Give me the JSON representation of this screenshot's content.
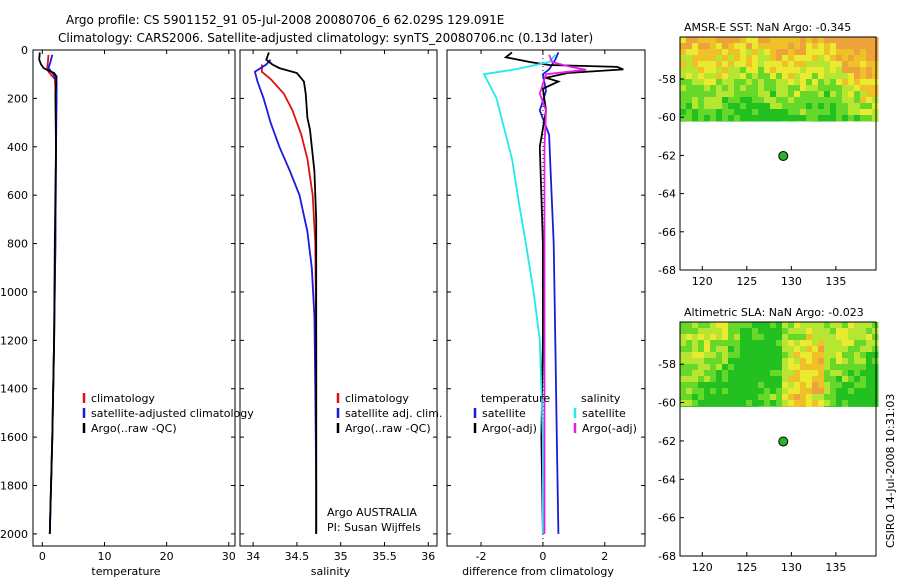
{
  "header": {
    "line1": "Argo profile: CS 5901152_91 05-Jul-2008 20080706_6 62.029S 129.091E",
    "line2": "Climatology: CARS2006. Satellite-adjusted climatology: synTS_20080706.nc (0.13d later)"
  },
  "side_stamp": "CSIRO 14-Jul-2008 10:31:03",
  "colors": {
    "red": "#e01010",
    "blue": "#1a1adc",
    "black": "#000000",
    "cyan": "#22e8f0",
    "magenta": "#e81ce8"
  },
  "chart_data": [
    {
      "type": "line",
      "id": "temperature",
      "xlabel": "temperature",
      "ylabel": "",
      "xlim": [
        -1.5,
        31
      ],
      "ylim": [
        2050,
        0
      ],
      "xticks": [
        0,
        10,
        20,
        30
      ],
      "yticks": [
        0,
        200,
        400,
        600,
        800,
        1000,
        1200,
        1400,
        1600,
        1800,
        2000
      ],
      "legend": {
        "position": "lower-right",
        "entries": [
          "climatology",
          "satellite-adjusted climatology",
          "Argo(..raw -QC)"
        ]
      },
      "series": [
        {
          "name": "climatology",
          "color": "red",
          "points": [
            [
              1.0,
              20
            ],
            [
              0.9,
              50
            ],
            [
              0.8,
              70
            ],
            [
              1.0,
              90
            ],
            [
              2.0,
              120
            ],
            [
              2.2,
              200
            ],
            [
              2.2,
              400
            ],
            [
              2.1,
              800
            ],
            [
              1.9,
              1200
            ],
            [
              1.6,
              1600
            ],
            [
              1.3,
              1900
            ],
            [
              1.2,
              2000
            ]
          ]
        },
        {
          "name": "satellite-adjusted climatology",
          "color": "blue",
          "points": [
            [
              1.6,
              20
            ],
            [
              1.3,
              50
            ],
            [
              1.0,
              75
            ],
            [
              1.8,
              100
            ],
            [
              2.3,
              130
            ],
            [
              2.3,
              200
            ],
            [
              2.2,
              400
            ],
            [
              2.1,
              800
            ],
            [
              1.9,
              1200
            ],
            [
              1.6,
              1600
            ],
            [
              1.3,
              1900
            ],
            [
              1.2,
              2000
            ]
          ]
        },
        {
          "name": "Argo(..raw -QC)",
          "color": "black",
          "points": [
            [
              -0.4,
              10
            ],
            [
              -0.5,
              40
            ],
            [
              -0.2,
              60
            ],
            [
              0.2,
              75
            ],
            [
              1.0,
              85
            ],
            [
              1.9,
              95
            ],
            [
              2.3,
              110
            ],
            [
              2.1,
              180
            ],
            [
              2.2,
              400
            ],
            [
              2.0,
              800
            ],
            [
              1.9,
              1200
            ],
            [
              1.6,
              1600
            ],
            [
              1.3,
              1900
            ],
            [
              1.2,
              2000
            ]
          ]
        }
      ]
    },
    {
      "type": "line",
      "id": "salinity",
      "xlabel": "salinity",
      "ylabel": "",
      "xlim": [
        33.85,
        36.1
      ],
      "ylim": [
        2050,
        0
      ],
      "xticks": [
        34,
        34.5,
        35,
        35.5,
        36
      ],
      "legend": {
        "position": "lower-right",
        "entries": [
          "climatology",
          "satellite adj. clim.",
          "Argo(..raw -QC)"
        ]
      },
      "annotation": [
        "Argo AUSTRALIA",
        "PI: Susan Wijffels"
      ],
      "series": [
        {
          "name": "climatology",
          "color": "red",
          "points": [
            [
              34.1,
              60
            ],
            [
              34.1,
              90
            ],
            [
              34.2,
              120
            ],
            [
              34.35,
              180
            ],
            [
              34.45,
              250
            ],
            [
              34.55,
              350
            ],
            [
              34.62,
              450
            ],
            [
              34.68,
              600
            ],
            [
              34.71,
              800
            ],
            [
              34.72,
              1200
            ],
            [
              34.72,
              1600
            ],
            [
              34.72,
              2000
            ]
          ]
        },
        {
          "name": "satellite adj. clim.",
          "color": "blue",
          "points": [
            [
              34.2,
              40
            ],
            [
              34.15,
              60
            ],
            [
              34.02,
              90
            ],
            [
              34.05,
              130
            ],
            [
              34.12,
              200
            ],
            [
              34.2,
              300
            ],
            [
              34.3,
              400
            ],
            [
              34.42,
              500
            ],
            [
              34.53,
              600
            ],
            [
              34.62,
              750
            ],
            [
              34.67,
              900
            ],
            [
              34.7,
              1100
            ],
            [
              34.71,
              1400
            ],
            [
              34.72,
              1800
            ],
            [
              34.72,
              2000
            ]
          ]
        },
        {
          "name": "Argo(..raw -QC)",
          "color": "black",
          "points": [
            [
              34.18,
              10
            ],
            [
              34.15,
              40
            ],
            [
              34.22,
              60
            ],
            [
              34.3,
              75
            ],
            [
              34.35,
              80
            ],
            [
              34.5,
              95
            ],
            [
              34.58,
              130
            ],
            [
              34.6,
              180
            ],
            [
              34.62,
              280
            ],
            [
              34.65,
              330
            ],
            [
              34.67,
              400
            ],
            [
              34.7,
              500
            ],
            [
              34.72,
              700
            ],
            [
              34.72,
              1000
            ],
            [
              34.72,
              1500
            ],
            [
              34.72,
              2000
            ]
          ]
        }
      ]
    },
    {
      "type": "line",
      "id": "difference",
      "xlabel": "difference from climatology",
      "ylabel": "",
      "xlim": [
        -3.1,
        3.3
      ],
      "ylim": [
        2050,
        0
      ],
      "xticks": [
        -2,
        0,
        2
      ],
      "legend": {
        "position": "lower-right",
        "entries": [
          "temperature",
          "satellite",
          "Argo(-adj)",
          "salinity",
          "satellite",
          "Argo(-adj)"
        ]
      },
      "series": [
        {
          "name": "temperature satellite",
          "color": "blue",
          "points": [
            [
              0.5,
              10
            ],
            [
              0.4,
              40
            ],
            [
              0.2,
              80
            ],
            [
              0,
              100
            ],
            [
              0.1,
              170
            ],
            [
              -0.1,
              250
            ],
            [
              0.2,
              350
            ],
            [
              0.25,
              500
            ],
            [
              0.35,
              800
            ],
            [
              0.4,
              1200
            ],
            [
              0.45,
              1600
            ],
            [
              0.5,
              2000
            ]
          ]
        },
        {
          "name": "temperature Argo(-adj)",
          "color": "black",
          "points": [
            [
              -1.0,
              10
            ],
            [
              -1.2,
              30
            ],
            [
              -0.4,
              50
            ],
            [
              0.2,
              62
            ],
            [
              2.4,
              70
            ],
            [
              2.6,
              80
            ],
            [
              0.8,
              95
            ],
            [
              0.1,
              115
            ],
            [
              0.5,
              130
            ],
            [
              0,
              160
            ],
            [
              0.1,
              250
            ],
            [
              -0.1,
              400
            ],
            [
              0,
              800
            ],
            [
              0,
              1200
            ],
            [
              -0.05,
              1600
            ],
            [
              0,
              2000
            ]
          ]
        },
        {
          "name": "salinity satellite",
          "color": "cyan",
          "points": [
            [
              0.4,
              20
            ],
            [
              0.2,
              50
            ],
            [
              -0.9,
              80
            ],
            [
              -1.9,
              100
            ],
            [
              -1.5,
              200
            ],
            [
              -1.2,
              350
            ],
            [
              -1.0,
              450
            ],
            [
              -0.75,
              650
            ],
            [
              -0.55,
              800
            ],
            [
              -0.3,
              1000
            ],
            [
              -0.1,
              1200
            ],
            [
              0,
              1600
            ],
            [
              0,
              2000
            ]
          ]
        },
        {
          "name": "salinity Argo(-adj)",
          "color": "magenta",
          "points": [
            [
              0.2,
              20
            ],
            [
              0.3,
              50
            ],
            [
              0.9,
              70
            ],
            [
              1.4,
              82
            ],
            [
              0.1,
              100
            ],
            [
              -0.1,
              180
            ],
            [
              0.1,
              250
            ],
            [
              0.05,
              400
            ],
            [
              0.05,
              800
            ],
            [
              0.05,
              1200
            ],
            [
              0.05,
              1600
            ],
            [
              0.05,
              2000
            ]
          ]
        }
      ]
    },
    {
      "type": "heatmap",
      "id": "amsre-sst",
      "title": "AMSR-E SST: NaN Argo: -0.345",
      "xlim": [
        117.5,
        139.5
      ],
      "ylim": [
        -68,
        -55.8
      ],
      "xticks": [
        120,
        125,
        130,
        135
      ],
      "yticks": [
        -58,
        -60,
        -62,
        -64,
        -66,
        -68
      ],
      "data_rows_lat": [
        -56,
        -60.2
      ],
      "marker": {
        "lon": 129.091,
        "lat": -62.029
      }
    },
    {
      "type": "heatmap",
      "id": "altimetric-sla",
      "title": "Altimetric SLA: NaN Argo: -0.023",
      "xlim": [
        117.5,
        139.5
      ],
      "ylim": [
        -68,
        -55.8
      ],
      "xticks": [
        120,
        125,
        130,
        135
      ],
      "yticks": [
        -58,
        -60,
        -62,
        -64,
        -66,
        -68
      ],
      "data_rows_lat": [
        -56,
        -60.2
      ],
      "marker": {
        "lon": 129.091,
        "lat": -62.029
      }
    }
  ]
}
